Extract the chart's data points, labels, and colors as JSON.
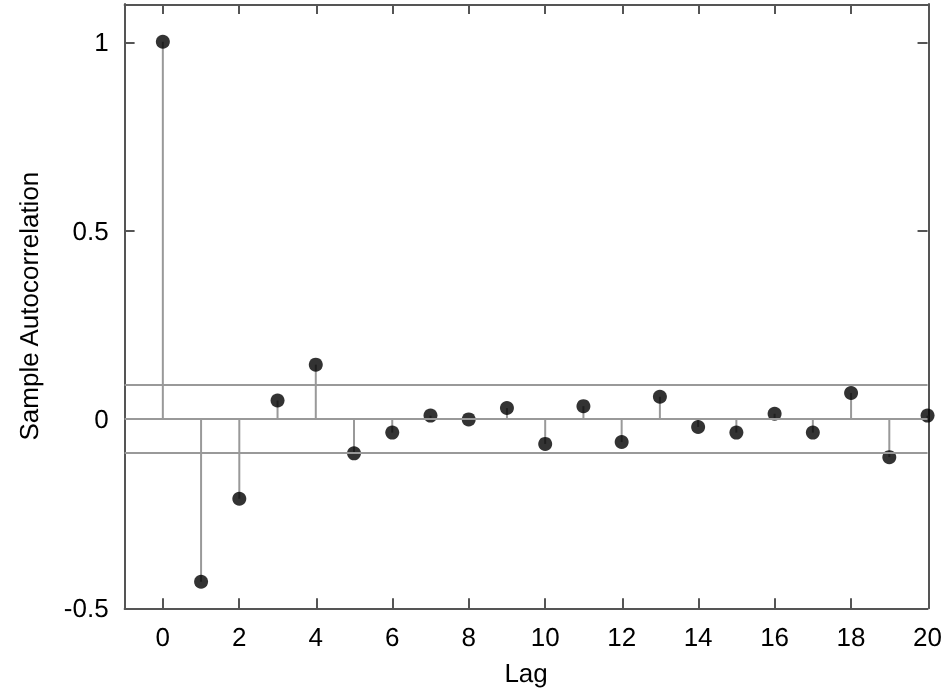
{
  "chart_data": {
    "type": "lollipop",
    "xlabel": "Lag",
    "ylabel": "Sample Autocorrelation",
    "x": [
      0,
      1,
      2,
      3,
      4,
      5,
      6,
      7,
      8,
      9,
      10,
      11,
      12,
      13,
      14,
      15,
      16,
      17,
      18,
      19,
      20
    ],
    "series": [
      {
        "color": "#000000",
        "values": [
          1,
          -0.43,
          -0.21,
          0.05,
          0.145,
          -0.09,
          -0.035,
          0.01,
          0,
          0.03,
          -0.065,
          0.035,
          -0.06,
          0.06,
          -0.02,
          -0.035,
          0.015,
          -0.035,
          0.07,
          -0.1,
          0.01
        ]
      }
    ],
    "xlim": [
      -1,
      20
    ],
    "xticks": [
      0,
      2,
      4,
      6,
      8,
      10,
      12,
      14,
      16,
      18,
      20
    ],
    "ylim": [
      -0.5,
      1.1
    ],
    "yticks": [
      -0.5,
      0,
      0.5,
      1
    ],
    "ref_lines": [
      {
        "axis": "y",
        "value": 0.09,
        "color": "#999999"
      },
      {
        "axis": "y",
        "value": -0.09,
        "color": "#999999"
      },
      {
        "axis": "y",
        "value": 0,
        "color": "#999999"
      }
    ],
    "grid": false,
    "marker": "circle"
  }
}
